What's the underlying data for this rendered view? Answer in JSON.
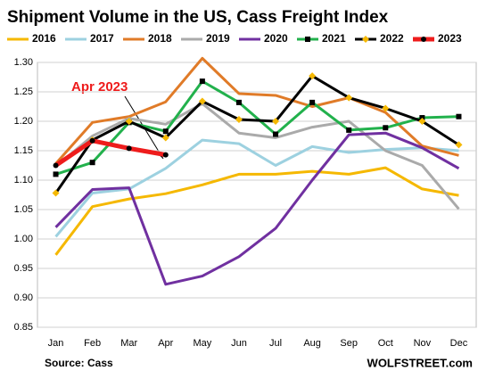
{
  "chart_data": {
    "type": "line",
    "title": "Shipment Volume in the US, Cass Freight Index",
    "source": "Source: Cass",
    "credit": "WOLFSTREET.com",
    "annotation": "Apr 2023",
    "categories": [
      "Jan",
      "Feb",
      "Mar",
      "Apr",
      "May",
      "Jun",
      "Jul",
      "Aug",
      "Sep",
      "Oct",
      "Nov",
      "Dec"
    ],
    "ylim": [
      0.85,
      1.3
    ],
    "yticks": [
      {
        "value": 0.85,
        "label": "0.85"
      },
      {
        "value": 0.9,
        "label": "0.90"
      },
      {
        "value": 0.95,
        "label": "0.95"
      },
      {
        "value": 1.0,
        "label": "1.00"
      },
      {
        "value": 1.05,
        "label": "1.05"
      },
      {
        "value": 1.1,
        "label": "1.10"
      },
      {
        "value": 1.15,
        "label": "1.15"
      },
      {
        "value": 1.2,
        "label": "1.20"
      },
      {
        "value": 1.25,
        "label": "1.25"
      },
      {
        "value": 1.3,
        "label": "1.30"
      }
    ],
    "grid": true,
    "legend": "top",
    "series": [
      {
        "name": "2016",
        "color": "#f5b800",
        "values": [
          0.973,
          1.055,
          1.068,
          1.077,
          1.092,
          1.11,
          1.11,
          1.115,
          1.11,
          1.121,
          1.085,
          1.074
        ]
      },
      {
        "name": "2017",
        "color": "#9dd1e0",
        "values": [
          1.004,
          1.078,
          1.085,
          1.12,
          1.168,
          1.162,
          1.125,
          1.157,
          1.147,
          1.152,
          1.155,
          1.15
        ]
      },
      {
        "name": "2018",
        "color": "#e07b28",
        "values": [
          1.128,
          1.198,
          1.208,
          1.233,
          1.307,
          1.247,
          1.244,
          1.225,
          1.24,
          1.215,
          1.158,
          1.142
        ]
      },
      {
        "name": "2019",
        "color": "#aaaaaa",
        "values": [
          1.123,
          1.175,
          1.205,
          1.195,
          1.23,
          1.18,
          1.172,
          1.19,
          1.2,
          1.15,
          1.125,
          1.051
        ]
      },
      {
        "name": "2020",
        "color": "#7030a0",
        "values": [
          1.02,
          1.084,
          1.087,
          0.923,
          0.937,
          0.97,
          1.018,
          1.1,
          1.177,
          1.18,
          1.155,
          1.12
        ]
      },
      {
        "name": "2021",
        "color": "#22b14c",
        "marker": "square",
        "marker_color": "#000000",
        "values": [
          1.11,
          1.13,
          1.198,
          1.183,
          1.268,
          1.232,
          1.178,
          1.232,
          1.185,
          1.189,
          1.206,
          1.208
        ]
      },
      {
        "name": "2022",
        "color": "#000000",
        "marker": "diamond",
        "marker_color": "#f5b800",
        "values": [
          1.078,
          1.168,
          1.2,
          1.172,
          1.234,
          1.203,
          1.2,
          1.277,
          1.24,
          1.222,
          1.2,
          1.16
        ]
      },
      {
        "name": "2023",
        "color": "#ee1c1c",
        "marker": "circle",
        "marker_color": "#000000",
        "values": [
          1.125,
          1.167,
          1.154,
          1.143,
          null,
          null,
          null,
          null,
          null,
          null,
          null,
          null
        ]
      }
    ]
  }
}
